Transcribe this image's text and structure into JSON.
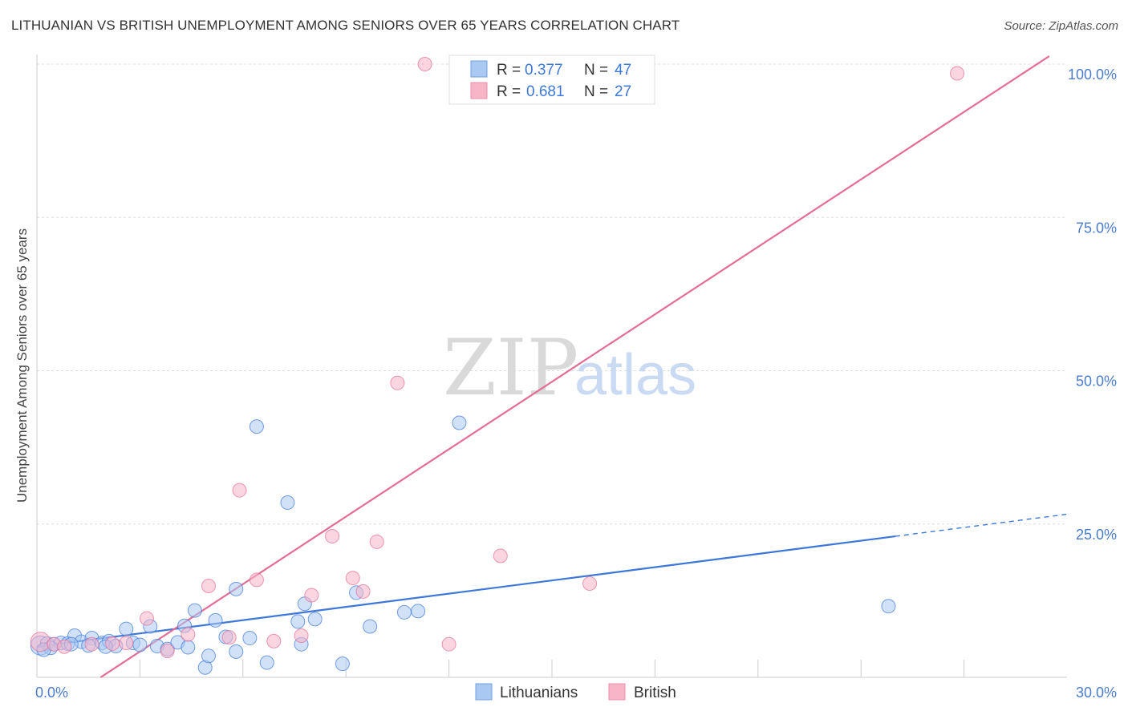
{
  "header": {
    "title": "LITHUANIAN VS BRITISH UNEMPLOYMENT AMONG SENIORS OVER 65 YEARS CORRELATION CHART",
    "source": "Source: ZipAtlas.com"
  },
  "watermark": {
    "zip": "ZIP",
    "atlas": "atlas"
  },
  "legend": {
    "rows": [
      {
        "r_label": "R = ",
        "r_value": "0.377",
        "n_label": "N = ",
        "n_value": "47",
        "color": "#a9c8f2"
      },
      {
        "r_label": "R = ",
        "r_value": "0.681",
        "n_label": "N = ",
        "n_value": "27",
        "color": "#f7b5c8"
      }
    ]
  },
  "chart_data": {
    "type": "scatter",
    "title": "LITHUANIAN VS BRITISH UNEMPLOYMENT AMONG SENIORS OVER 65 YEARS CORRELATION CHART",
    "xlabel": "",
    "ylabel": "Unemployment Among Seniors over 65 years",
    "xlim": [
      0,
      30
    ],
    "ylim": [
      0,
      100
    ],
    "x_tick_labels": [
      "0.0%",
      "30.0%"
    ],
    "y_tick_labels": [
      "100.0%",
      "75.0%",
      "50.0%",
      "25.0%"
    ],
    "y_ticks": [
      100,
      75,
      50,
      25
    ],
    "grid": true,
    "legend_position": "top-center",
    "series": [
      {
        "name": "Lithuanians",
        "color": "#3d78d8",
        "fill": "#a9c8f2",
        "points": [
          [
            0.1,
            5.2
          ],
          [
            0.3,
            5.5
          ],
          [
            0.5,
            5.4
          ],
          [
            0.7,
            5.6
          ],
          [
            0.9,
            5.5
          ],
          [
            1.1,
            6.8
          ],
          [
            1.3,
            5.8
          ],
          [
            1.6,
            6.4
          ],
          [
            1.9,
            5.6
          ],
          [
            2.1,
            5.9
          ],
          [
            2.3,
            5.1
          ],
          [
            2.6,
            7.9
          ],
          [
            2.8,
            5.6
          ],
          [
            3.3,
            8.3
          ],
          [
            3.5,
            5.1
          ],
          [
            3.8,
            4.6
          ],
          [
            4.1,
            5.7
          ],
          [
            4.3,
            8.4
          ],
          [
            4.6,
            10.9
          ],
          [
            4.9,
            1.6
          ],
          [
            5.0,
            3.5
          ],
          [
            5.2,
            9.3
          ],
          [
            5.5,
            6.6
          ],
          [
            5.8,
            14.4
          ],
          [
            5.8,
            4.2
          ],
          [
            6.2,
            6.4
          ],
          [
            6.4,
            40.9
          ],
          [
            6.7,
            2.4
          ],
          [
            7.3,
            28.5
          ],
          [
            7.6,
            9.1
          ],
          [
            7.7,
            5.4
          ],
          [
            7.8,
            12.0
          ],
          [
            8.1,
            9.5
          ],
          [
            8.9,
            2.2
          ],
          [
            9.3,
            13.8
          ],
          [
            9.7,
            8.3
          ],
          [
            10.7,
            10.6
          ],
          [
            11.1,
            10.8
          ],
          [
            12.3,
            41.5
          ],
          [
            24.8,
            11.6
          ],
          [
            0.4,
            4.8
          ],
          [
            1.5,
            5.2
          ],
          [
            2.0,
            5.0
          ],
          [
            0.2,
            4.5
          ],
          [
            3.0,
            5.3
          ],
          [
            4.4,
            4.9
          ],
          [
            1.0,
            5.4
          ]
        ]
      },
      {
        "name": "British",
        "color": "#e36d97",
        "fill": "#f7b5c8",
        "points": [
          [
            0.1,
            5.8
          ],
          [
            0.5,
            5.4
          ],
          [
            1.6,
            5.4
          ],
          [
            2.6,
            5.6
          ],
          [
            3.2,
            9.6
          ],
          [
            3.8,
            4.3
          ],
          [
            4.4,
            7.0
          ],
          [
            5.0,
            14.9
          ],
          [
            5.6,
            6.5
          ],
          [
            5.9,
            30.5
          ],
          [
            6.4,
            15.9
          ],
          [
            6.9,
            5.9
          ],
          [
            7.7,
            6.8
          ],
          [
            8.0,
            13.4
          ],
          [
            8.6,
            23.0
          ],
          [
            9.2,
            16.2
          ],
          [
            9.5,
            14.0
          ],
          [
            9.9,
            22.1
          ],
          [
            10.5,
            48.0
          ],
          [
            11.3,
            100.0
          ],
          [
            12.0,
            5.4
          ],
          [
            13.5,
            19.8
          ],
          [
            14.0,
            100.0
          ],
          [
            16.1,
            15.3
          ],
          [
            26.8,
            98.5
          ],
          [
            0.8,
            5.0
          ],
          [
            2.2,
            5.5
          ]
        ]
      }
    ],
    "trendlines": [
      {
        "series": "Lithuanians",
        "x": [
          0,
          25.0
        ],
        "y": [
          5.0,
          23.0
        ],
        "dashed_to": [
          30.0,
          26.6
        ]
      },
      {
        "series": "British",
        "x": [
          0,
          30.0
        ],
        "y": [
          -6.8,
          103.2
        ]
      }
    ]
  },
  "bottom_legend": {
    "items": [
      {
        "label": "Lithuanians",
        "color": "#a9c8f2"
      },
      {
        "label": "British",
        "color": "#f7b5c8"
      }
    ]
  }
}
